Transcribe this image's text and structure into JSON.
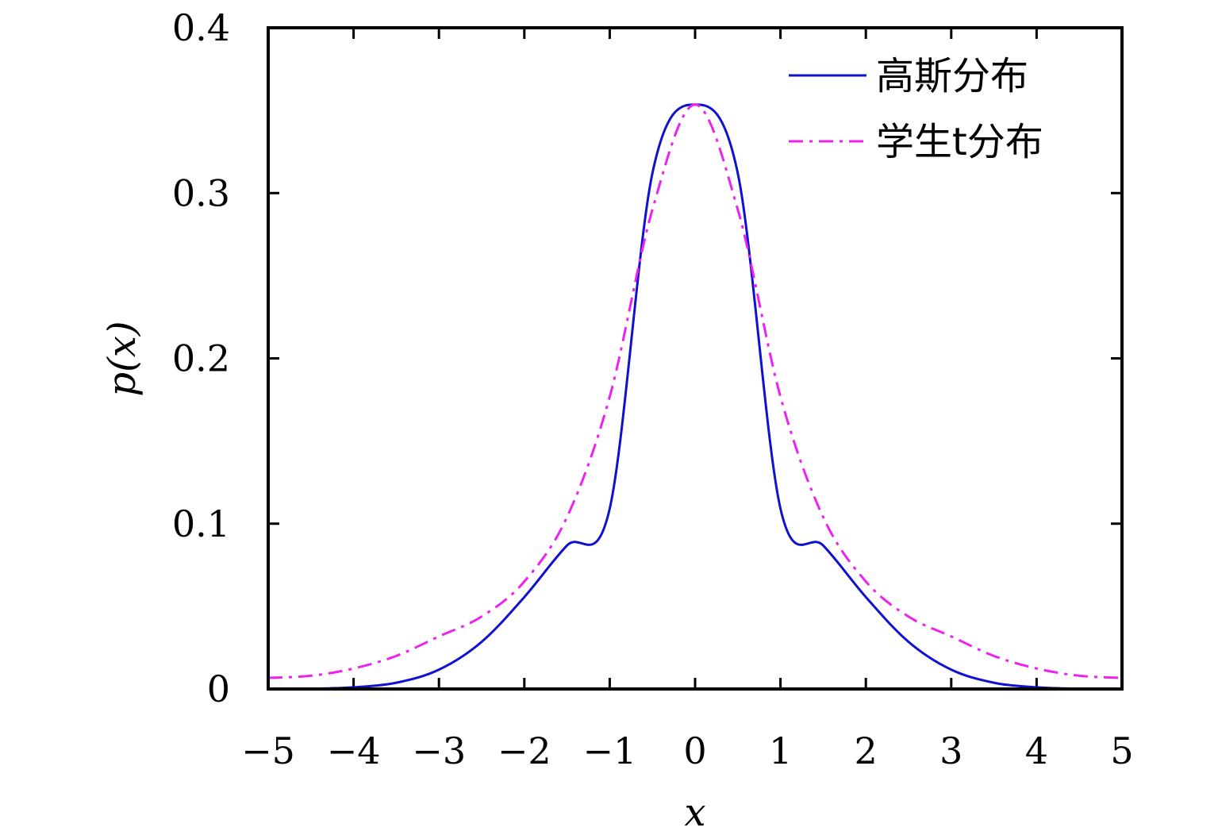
{
  "chart_data": {
    "type": "line",
    "title": "",
    "xlabel": "x",
    "ylabel": "p(x)",
    "xlim": [
      -5,
      5
    ],
    "ylim": [
      0,
      0.4
    ],
    "x_ticks": [
      -5,
      -4,
      -3,
      -2,
      -1,
      0,
      1,
      2,
      3,
      4,
      5
    ],
    "x_tick_labels": [
      "−5",
      "−4",
      "−3",
      "−2",
      "−1",
      "0",
      "1",
      "2",
      "3",
      "4",
      "5"
    ],
    "y_ticks": [
      0,
      0.1,
      0.2,
      0.3,
      0.4
    ],
    "y_tick_labels": [
      "0",
      "0.1",
      "0.2",
      "0.3",
      "0.4"
    ],
    "grid": false,
    "legend_position": "top-right",
    "x": [
      -5,
      -4.5,
      -4,
      -3.5,
      -3,
      -2.5,
      -2,
      -1.5,
      -1,
      -0.5,
      0,
      0.5,
      1,
      1.5,
      2,
      2.5,
      3,
      3.5,
      4,
      4.5,
      5
    ],
    "series": [
      {
        "name": "高斯分布",
        "color": "#1010d0",
        "dash": "solid",
        "values": [
          0.0,
          0.0001,
          0.001,
          0.0038,
          0.0117,
          0.0285,
          0.0556,
          0.0868,
          0.1091,
          0.312,
          0.3535,
          0.312,
          0.1091,
          0.0868,
          0.0556,
          0.0285,
          0.0117,
          0.0038,
          0.001,
          0.0001,
          0.0
        ]
      },
      {
        "name": "学生t分布",
        "color": "#ee22ee",
        "dash": "dash-dot",
        "values": [
          0.0067,
          0.008,
          0.0124,
          0.02,
          0.0318,
          0.0438,
          0.065,
          0.104,
          0.1768,
          0.29,
          0.3535,
          0.29,
          0.1768,
          0.104,
          0.065,
          0.0438,
          0.0318,
          0.02,
          0.0124,
          0.008,
          0.0067
        ]
      }
    ]
  }
}
